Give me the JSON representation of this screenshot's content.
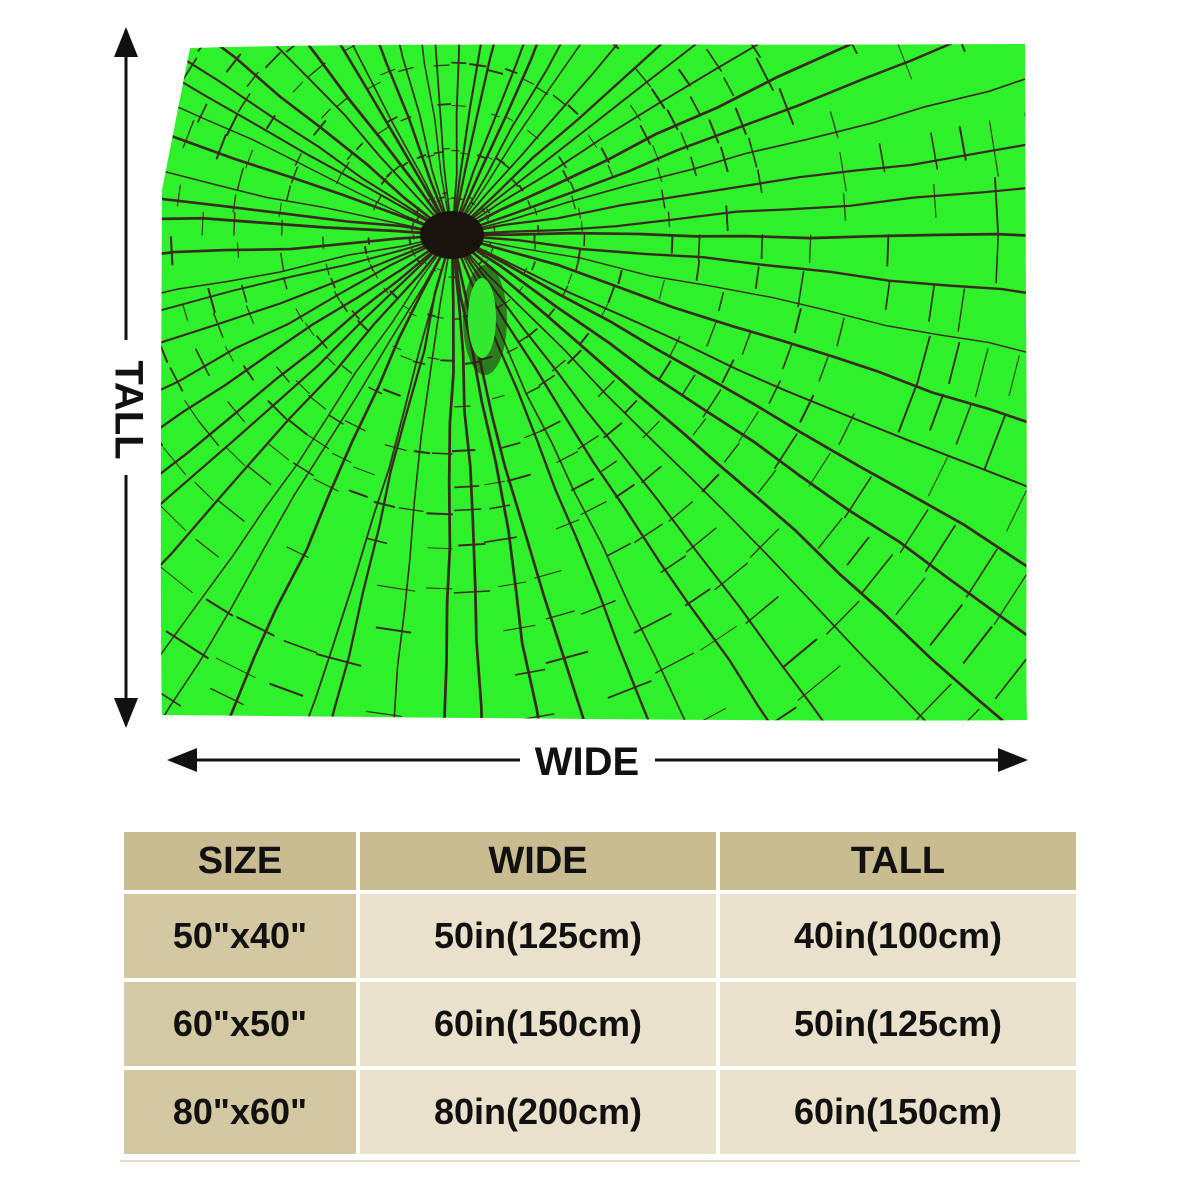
{
  "figure": {
    "height_label": "TALL",
    "width_label": "WIDE",
    "colors": {
      "blanket": "#2ef02b",
      "cracks": "#3a2a1e",
      "arrow": "#111111"
    }
  },
  "table": {
    "headers": [
      "SIZE",
      "WIDE",
      "TALL"
    ],
    "rows": [
      [
        "50\"x40\"",
        "50in(125cm)",
        "40in(100cm)"
      ],
      [
        "60\"x50\"",
        "60in(150cm)",
        "50in(125cm)"
      ],
      [
        "80\"x60\"",
        "80in(200cm)",
        "60in(150cm)"
      ]
    ],
    "colors": {
      "header": "#c9bc90",
      "size_cell": "#d4c9a5",
      "value_cell": "#e9e1cb"
    }
  }
}
